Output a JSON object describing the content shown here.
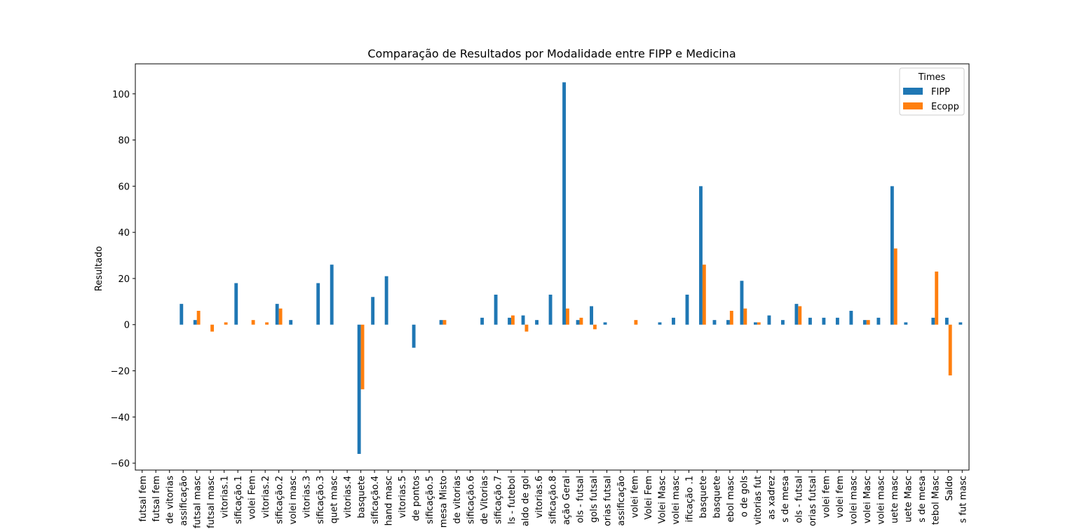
{
  "chart_data": {
    "type": "bar",
    "title": "Comparação de Resultados por Modalidade entre FIPP e Medicina",
    "xlabel": "",
    "ylabel": "Resultado",
    "ylim": [
      -63,
      113
    ],
    "yticks": [
      -60,
      -40,
      -20,
      0,
      20,
      40,
      60,
      80,
      100
    ],
    "ytick_labels": [
      "−60",
      "−40",
      "−20",
      "0",
      "20",
      "40",
      "60",
      "80",
      "100"
    ],
    "legend": {
      "title": "Times",
      "placement": "top-right"
    },
    "grid": false,
    "categories": [
      "futsal fem",
      "futsal fem",
      "de vitorias",
      "assificação",
      "futsal masc",
      "futsal masc",
      "vitorias.1",
      "sificação.1",
      "volei Fem",
      "vitorias.2",
      "sificação.2",
      "volei masc",
      "vitorias.3",
      "sificação.3",
      "quet masc",
      "vitorias.4",
      "basquete",
      "sificação.4",
      "hand masc",
      "vitorias.5",
      "de pontos",
      "sificação.5",
      "mesa Misto",
      "de vitorias",
      "sificação.6",
      "de Vitorias",
      "sificação.7",
      "ls - futebol",
      "aldo de gol",
      "vitorias.6",
      "sificação.8",
      "ação Geral",
      "ols - futsal",
      "gols futsal",
      "orias futsal",
      "assificação",
      "volei fem",
      "Volei Fem",
      "Volei Masc",
      "volei masc",
      "ificação .1",
      "basquete",
      "basquete",
      "ebol masc",
      "o de gols",
      "vitorias fut",
      "as xadrez",
      "s de mesa",
      "ols - futsal",
      "orias futsal",
      "volei fem",
      "volei fem",
      "volei masc",
      "volei Masc",
      "volei masc",
      "uete masc",
      "uete Masc",
      "s de mesa",
      "tebol Masc",
      "Saldo",
      "s fut masc"
    ],
    "series": [
      {
        "name": "FIPP",
        "color": "#1f77b4",
        "values": [
          0,
          0,
          0,
          9,
          2,
          0,
          0,
          18,
          0,
          0,
          9,
          2,
          0,
          18,
          26,
          0,
          -56,
          12,
          21,
          0,
          -10,
          0,
          2,
          0,
          0,
          3,
          13,
          3,
          4,
          2,
          13,
          105,
          2,
          8,
          1,
          0,
          0,
          0,
          1,
          3,
          13,
          60,
          2,
          2,
          19,
          1,
          4,
          2,
          9,
          3,
          3,
          3,
          6,
          2,
          3,
          60,
          1,
          0,
          3,
          3,
          1
        ]
      },
      {
        "name": "Ecopp",
        "color": "#ff7f0e",
        "values": [
          0,
          0,
          0,
          0,
          6,
          -3,
          1,
          0,
          2,
          1,
          7,
          0,
          0,
          0,
          0,
          0,
          -28,
          0,
          0,
          0,
          0,
          0,
          2,
          0,
          0,
          0,
          0,
          4,
          -3,
          0,
          0,
          7,
          3,
          -2,
          0,
          0,
          2,
          0,
          0,
          0,
          0,
          26,
          0,
          6,
          7,
          1,
          0,
          0,
          8,
          0,
          0,
          0,
          0,
          2,
          0,
          33,
          0,
          0,
          23,
          -22,
          0
        ]
      }
    ]
  }
}
